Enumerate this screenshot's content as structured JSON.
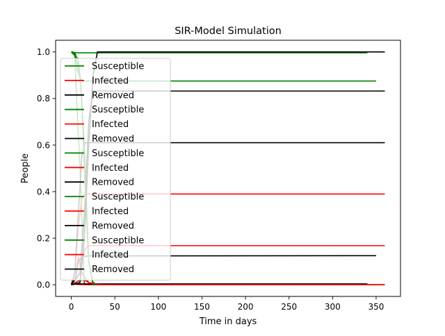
{
  "chart_data": {
    "type": "line",
    "title": "SIR-Model Simulation",
    "xlabel": "Time in days",
    "ylabel": "People",
    "xlim": [
      -18,
      378
    ],
    "ylim": [
      -0.05,
      1.05
    ],
    "xticks": [
      "0",
      "50",
      "100",
      "150",
      "200",
      "250",
      "300",
      "350"
    ],
    "yticks": [
      "0.0",
      "0.2",
      "0.4",
      "0.6",
      "0.8",
      "1.0"
    ],
    "grid": false,
    "legend": {
      "placement": "left"
    },
    "colors": {
      "Susceptible": "#008000",
      "Infected": "#ff0000",
      "Removed": "#000000"
    },
    "series": [
      {
        "name": "Susceptible",
        "color": "#008000",
        "x": [
          0,
          3,
          5,
          7,
          12,
          350
        ],
        "y": [
          1.0,
          0.999,
          0.99,
          0.92,
          0.875,
          0.875
        ]
      },
      {
        "name": "Infected",
        "color": "#ff0000",
        "x": [
          0,
          5,
          8,
          12,
          20,
          30,
          350
        ],
        "y": [
          0.001,
          0.03,
          0.12,
          0.05,
          0.01,
          0.001,
          0.0
        ]
      },
      {
        "name": "Removed",
        "color": "#000000",
        "x": [
          0,
          5,
          8,
          12,
          20,
          350
        ],
        "y": [
          0.0,
          0.03,
          0.1,
          0.12,
          0.124,
          0.125
        ]
      },
      {
        "name": "Susceptible",
        "color": "#008000",
        "x": [
          0,
          4,
          6,
          10,
          15,
          360
        ],
        "y": [
          1.0,
          0.99,
          0.8,
          0.5,
          0.0,
          0.0
        ]
      },
      {
        "name": "Infected",
        "color": "#ff0000",
        "x": [
          0,
          4,
          8,
          12,
          16,
          360
        ],
        "y": [
          0.0,
          0.05,
          0.25,
          0.37,
          0.39,
          0.39
        ]
      },
      {
        "name": "Removed",
        "color": "#000000",
        "x": [
          0,
          4,
          8,
          12,
          16,
          360
        ],
        "y": [
          0.0,
          0.05,
          0.3,
          0.55,
          0.61,
          0.61
        ]
      },
      {
        "name": "Susceptible",
        "color": "#008000",
        "x": [
          0,
          3,
          5,
          8,
          340
        ],
        "y": [
          1.0,
          0.998,
          0.997,
          0.996,
          0.996
        ]
      },
      {
        "name": "Infected",
        "color": "#ff0000",
        "x": [
          0,
          3,
          6,
          10,
          340
        ],
        "y": [
          0.001,
          0.003,
          0.002,
          0.001,
          0.0
        ]
      },
      {
        "name": "Removed",
        "color": "#000000",
        "x": [
          0,
          5,
          10,
          340
        ],
        "y": [
          0.0,
          0.003,
          0.004,
          0.004
        ]
      },
      {
        "name": "Susceptible",
        "color": "#008000",
        "x": [
          0,
          5,
          10,
          15,
          20,
          25,
          360
        ],
        "y": [
          1.0,
          0.98,
          0.9,
          0.6,
          0.1,
          0.0,
          0.0
        ]
      },
      {
        "name": "Infected",
        "color": "#ff0000",
        "x": [
          0,
          10,
          15,
          20,
          25,
          360
        ],
        "y": [
          0.0,
          0.05,
          0.15,
          0.168,
          0.168,
          0.168
        ]
      },
      {
        "name": "Removed",
        "color": "#000000",
        "x": [
          0,
          10,
          15,
          20,
          25,
          360
        ],
        "y": [
          0.0,
          0.05,
          0.3,
          0.7,
          0.832,
          0.832
        ]
      },
      {
        "name": "Susceptible",
        "color": "#008000",
        "x": [
          0,
          8,
          12,
          16,
          20,
          25,
          30,
          360
        ],
        "y": [
          1.0,
          0.97,
          0.8,
          0.4,
          0.1,
          0.01,
          0.0,
          0.0
        ]
      },
      {
        "name": "Infected",
        "color": "#ff0000",
        "x": [
          0,
          10,
          15,
          20,
          25,
          30,
          40,
          360
        ],
        "y": [
          0.0,
          0.02,
          0.02,
          0.01,
          0.005,
          0.002,
          0.0,
          0.0
        ]
      },
      {
        "name": "Removed",
        "color": "#000000",
        "x": [
          0,
          10,
          15,
          20,
          25,
          30,
          360
        ],
        "y": [
          0.0,
          0.01,
          0.2,
          0.6,
          0.9,
          1.0,
          1.0
        ]
      }
    ]
  }
}
